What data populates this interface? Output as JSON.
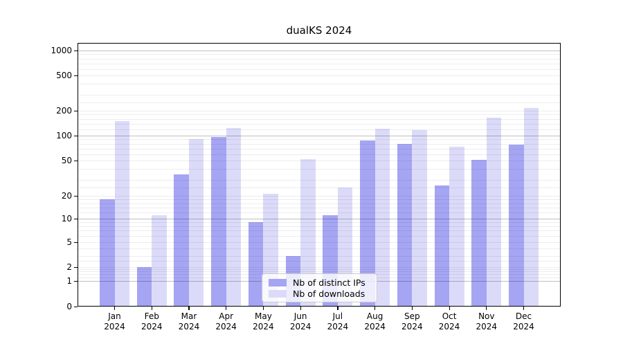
{
  "chart_data": {
    "type": "bar",
    "title": "dualKS 2024",
    "categories": [
      "Jan 2024",
      "Feb 2024",
      "Mar 2024",
      "Apr 2024",
      "May 2024",
      "Jun 2024",
      "Jul 2024",
      "Aug 2024",
      "Sep 2024",
      "Oct 2024",
      "Nov 2024",
      "Dec 2024"
    ],
    "series": [
      {
        "name": "Nb of distinct IPs",
        "color": "#a5a5f4",
        "values": [
          18,
          2,
          35,
          97,
          9,
          3,
          11,
          88,
          80,
          26,
          51,
          78
        ]
      },
      {
        "name": "Nb of downloads",
        "color": "#dbdbf9",
        "values": [
          150,
          11,
          90,
          124,
          21,
          52,
          25,
          122,
          116,
          74,
          165,
          215
        ]
      }
    ],
    "yscale": "log-like (asinh), linear below 1",
    "yticks": [
      0,
      1,
      2,
      5,
      10,
      20,
      50,
      100,
      200,
      500,
      1000
    ],
    "ylim": [
      0,
      1400
    ],
    "xlabel": "",
    "ylabel": "",
    "grid": true,
    "gridlines_over_bars": true,
    "legend_position": "lower center, inside plot",
    "legend_entries": [
      "Nb of distinct IPs",
      "Nb of downloads"
    ]
  },
  "colors": {
    "background": "#ffffff",
    "spine": "#000000",
    "major_grid": "rgba(0,0,0,0.25)",
    "minor_grid": "rgba(0,0,0,0.07)",
    "legend_border": "#cccccc"
  }
}
